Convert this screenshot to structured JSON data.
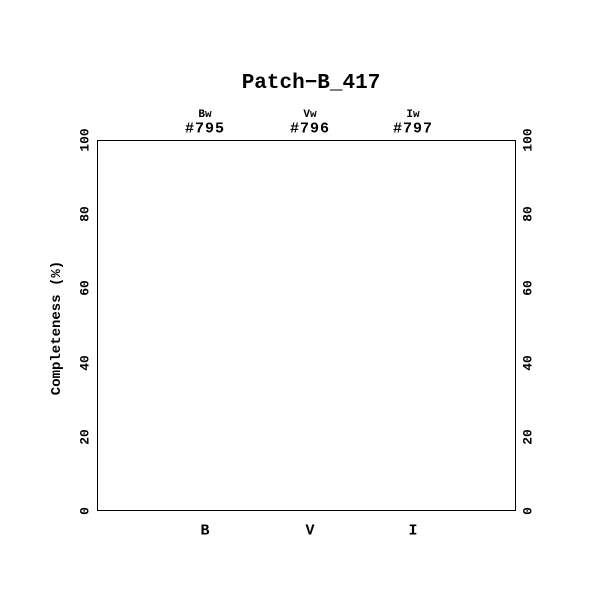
{
  "title": "Patch−B_417",
  "y_axis": {
    "label": "Completeness (%)"
  },
  "top_axis": {
    "columns": [
      {
        "band": "Bw",
        "field_id": "#795"
      },
      {
        "band": "Vw",
        "field_id": "#796"
      },
      {
        "band": "Iw",
        "field_id": "#797"
      }
    ]
  },
  "x_axis": {
    "categories": [
      "B",
      "V",
      "I"
    ]
  },
  "colors": {
    "foreground": "#000000",
    "background": "#ffffff"
  },
  "chart_data": {
    "type": "scatter",
    "title": "Patch−B_417",
    "xlabel": "",
    "ylabel": "Completeness (%)",
    "ylim": [
      0,
      100
    ],
    "y_ticks_major": [
      0,
      20,
      40,
      60,
      80,
      100
    ],
    "y_tick_minor_step": 5,
    "x_categories": [
      "B",
      "V",
      "I"
    ],
    "top_labels": [
      {
        "band": "Bw",
        "field_id": "#795"
      },
      {
        "band": "Vw",
        "field_id": "#796"
      },
      {
        "band": "Iw",
        "field_id": "#797"
      }
    ],
    "legend": null,
    "grid": false,
    "series": []
  }
}
